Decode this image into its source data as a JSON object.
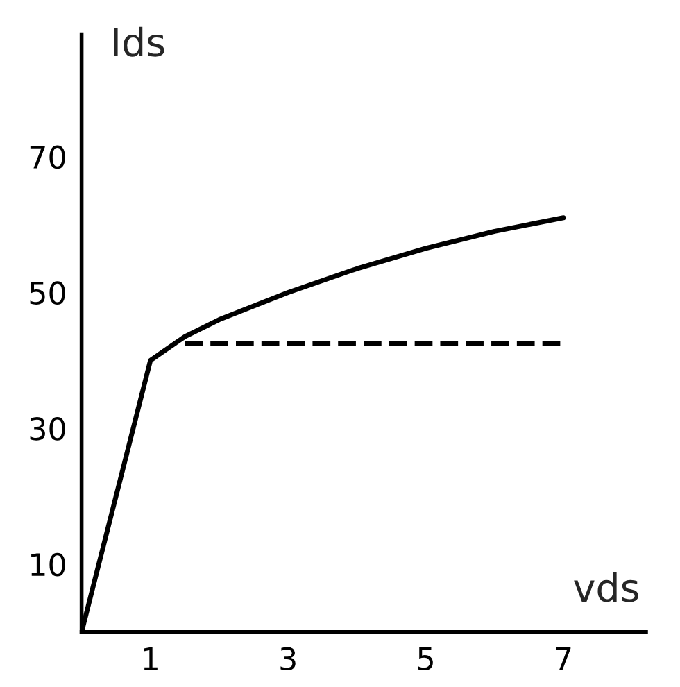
{
  "chart_data": {
    "type": "line",
    "xlabel": "vds",
    "ylabel": "Ids",
    "series": [
      {
        "color": "#000000",
        "x": [
          0,
          1,
          1.5,
          2,
          3,
          4,
          5,
          6,
          7
        ],
        "values": [
          0,
          40,
          43.5,
          46,
          50,
          53.5,
          56.5,
          59,
          61
        ],
        "line_style": "solid"
      },
      {
        "color": "#000000",
        "x": [
          1.5,
          7
        ],
        "values": [
          42.5,
          42.5
        ],
        "line_style": "dashed"
      }
    ],
    "xlim": [
      0,
      8.2
    ],
    "ylim": [
      0,
      88
    ],
    "xticks": [
      1,
      3,
      5,
      7
    ],
    "yticks": [
      10,
      30,
      50,
      70
    ],
    "grid": false,
    "marker": "none"
  }
}
